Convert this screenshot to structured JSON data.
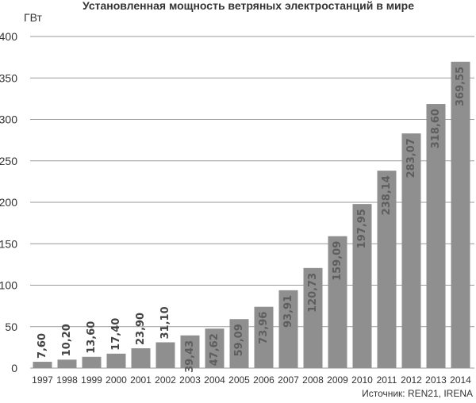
{
  "chart_data": {
    "type": "bar",
    "title": "Установленная мощность ветряных электростанций в мире",
    "unit": "ГВт",
    "source": "Источник: REN21, IRENA",
    "categories": [
      "1997",
      "1998",
      "1999",
      "2000",
      "2001",
      "2002",
      "2003",
      "2004",
      "2005",
      "2006",
      "2007",
      "2008",
      "2009",
      "2010",
      "2011",
      "2012",
      "2013",
      "2014"
    ],
    "values": [
      7.6,
      10.2,
      13.6,
      17.4,
      23.9,
      31.1,
      39.43,
      47.62,
      59.09,
      73.96,
      93.91,
      120.73,
      159.09,
      197.95,
      238.14,
      283.07,
      318.6,
      369.55
    ],
    "value_labels": [
      "7,60",
      "10,20",
      "13,60",
      "17,40",
      "23,90",
      "31,10",
      "39,43",
      "47,62",
      "59,09",
      "73,96",
      "93,91",
      "120,73",
      "159,09",
      "197,95",
      "238,14",
      "283,07",
      "318,60",
      "369,55"
    ],
    "ylim": [
      0,
      400
    ],
    "yticks": [
      0,
      50,
      100,
      150,
      200,
      250,
      300,
      350,
      400
    ],
    "grid": true,
    "legend": "none",
    "colors": {
      "bar": "#8f8f8f",
      "grid": "#9a9a9a",
      "label_outside": "#444444",
      "label_inside": "#5e5e5e"
    }
  }
}
